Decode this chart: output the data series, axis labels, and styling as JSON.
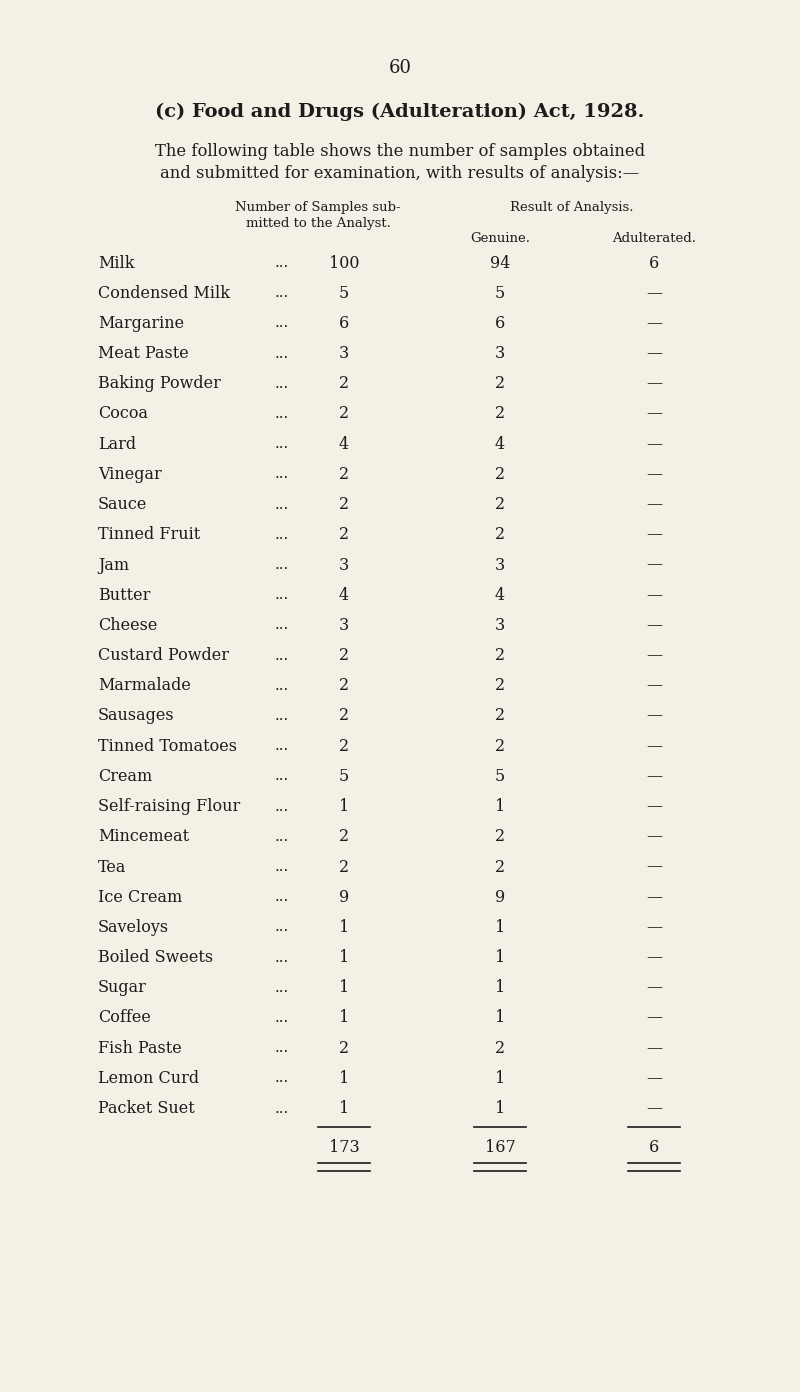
{
  "page_number": "60",
  "title_line1": "(c) Food and Drugs (Adulteration) Act, 1928.",
  "intro_line1": "The following table shows the number of samples obtained",
  "intro_line2": "and submitted for examination, with results of analysis:—",
  "col_header1_line1": "Number of Samples sub-",
  "col_header1_line2": "mitted to the Analyst.",
  "col_header2": "Result of Analysis.",
  "col_header_genuine": "Genuine.",
  "col_header_adulterated": "Adulterated.",
  "rows": [
    {
      "item": "Milk",
      "submitted": "100",
      "genuine": "94",
      "adulterated": "6"
    },
    {
      "item": "Condensed Milk",
      "submitted": "5",
      "genuine": "5",
      "adulterated": "—"
    },
    {
      "item": "Margarine",
      "submitted": "6",
      "genuine": "6",
      "adulterated": "—"
    },
    {
      "item": "Meat Paste",
      "submitted": "3",
      "genuine": "3",
      "adulterated": "—"
    },
    {
      "item": "Baking Powder",
      "submitted": "2",
      "genuine": "2",
      "adulterated": "—"
    },
    {
      "item": "Cocoa",
      "submitted": "2",
      "genuine": "2",
      "adulterated": "—"
    },
    {
      "item": "Lard",
      "submitted": "4",
      "genuine": "4",
      "adulterated": "—"
    },
    {
      "item": "Vinegar",
      "submitted": "2",
      "genuine": "2",
      "adulterated": "—"
    },
    {
      "item": "Sauce",
      "submitted": "2",
      "genuine": "2",
      "adulterated": "—"
    },
    {
      "item": "Tinned Fruit",
      "submitted": "2",
      "genuine": "2",
      "adulterated": "—"
    },
    {
      "item": "Jam",
      "submitted": "3",
      "genuine": "3",
      "adulterated": "—"
    },
    {
      "item": "Butter",
      "submitted": "4",
      "genuine": "4",
      "adulterated": "—"
    },
    {
      "item": "Cheese",
      "submitted": "3",
      "genuine": "3",
      "adulterated": "—"
    },
    {
      "item": "Custard Powder",
      "submitted": "2",
      "genuine": "2",
      "adulterated": "—"
    },
    {
      "item": "Marmalade",
      "submitted": "2",
      "genuine": "2",
      "adulterated": "—"
    },
    {
      "item": "Sausages",
      "submitted": "2",
      "genuine": "2",
      "adulterated": "—"
    },
    {
      "item": "Tinned Tomatoes",
      "submitted": "2",
      "genuine": "2",
      "adulterated": "—"
    },
    {
      "item": "Cream",
      "submitted": "5",
      "genuine": "5",
      "adulterated": "—"
    },
    {
      "item": "Self-raising Flour",
      "submitted": "1",
      "genuine": "1",
      "adulterated": "—"
    },
    {
      "item": "Mincemeat",
      "submitted": "2",
      "genuine": "2",
      "adulterated": "—"
    },
    {
      "item": "Tea",
      "submitted": "2",
      "genuine": "2",
      "adulterated": "—"
    },
    {
      "item": "Ice Cream",
      "submitted": "9",
      "genuine": "9",
      "adulterated": "—"
    },
    {
      "item": "Saveloys",
      "submitted": "1",
      "genuine": "1",
      "adulterated": "—"
    },
    {
      "item": "Boiled Sweets",
      "submitted": "1",
      "genuine": "1",
      "adulterated": "—"
    },
    {
      "item": "Sugar",
      "submitted": "1",
      "genuine": "1",
      "adulterated": "—"
    },
    {
      "item": "Coffee",
      "submitted": "1",
      "genuine": "1",
      "adulterated": "—"
    },
    {
      "item": "Fish Paste",
      "submitted": "2",
      "genuine": "2",
      "adulterated": "—"
    },
    {
      "item": "Lemon Curd",
      "submitted": "1",
      "genuine": "1",
      "adulterated": "—"
    },
    {
      "item": "Packet Suet",
      "submitted": "1",
      "genuine": "1",
      "adulterated": "—"
    }
  ],
  "total_submitted": "173",
  "total_genuine": "167",
  "total_adulterated": "6",
  "bg_color": "#f5f0e6",
  "text_color": "#1c1c1c"
}
